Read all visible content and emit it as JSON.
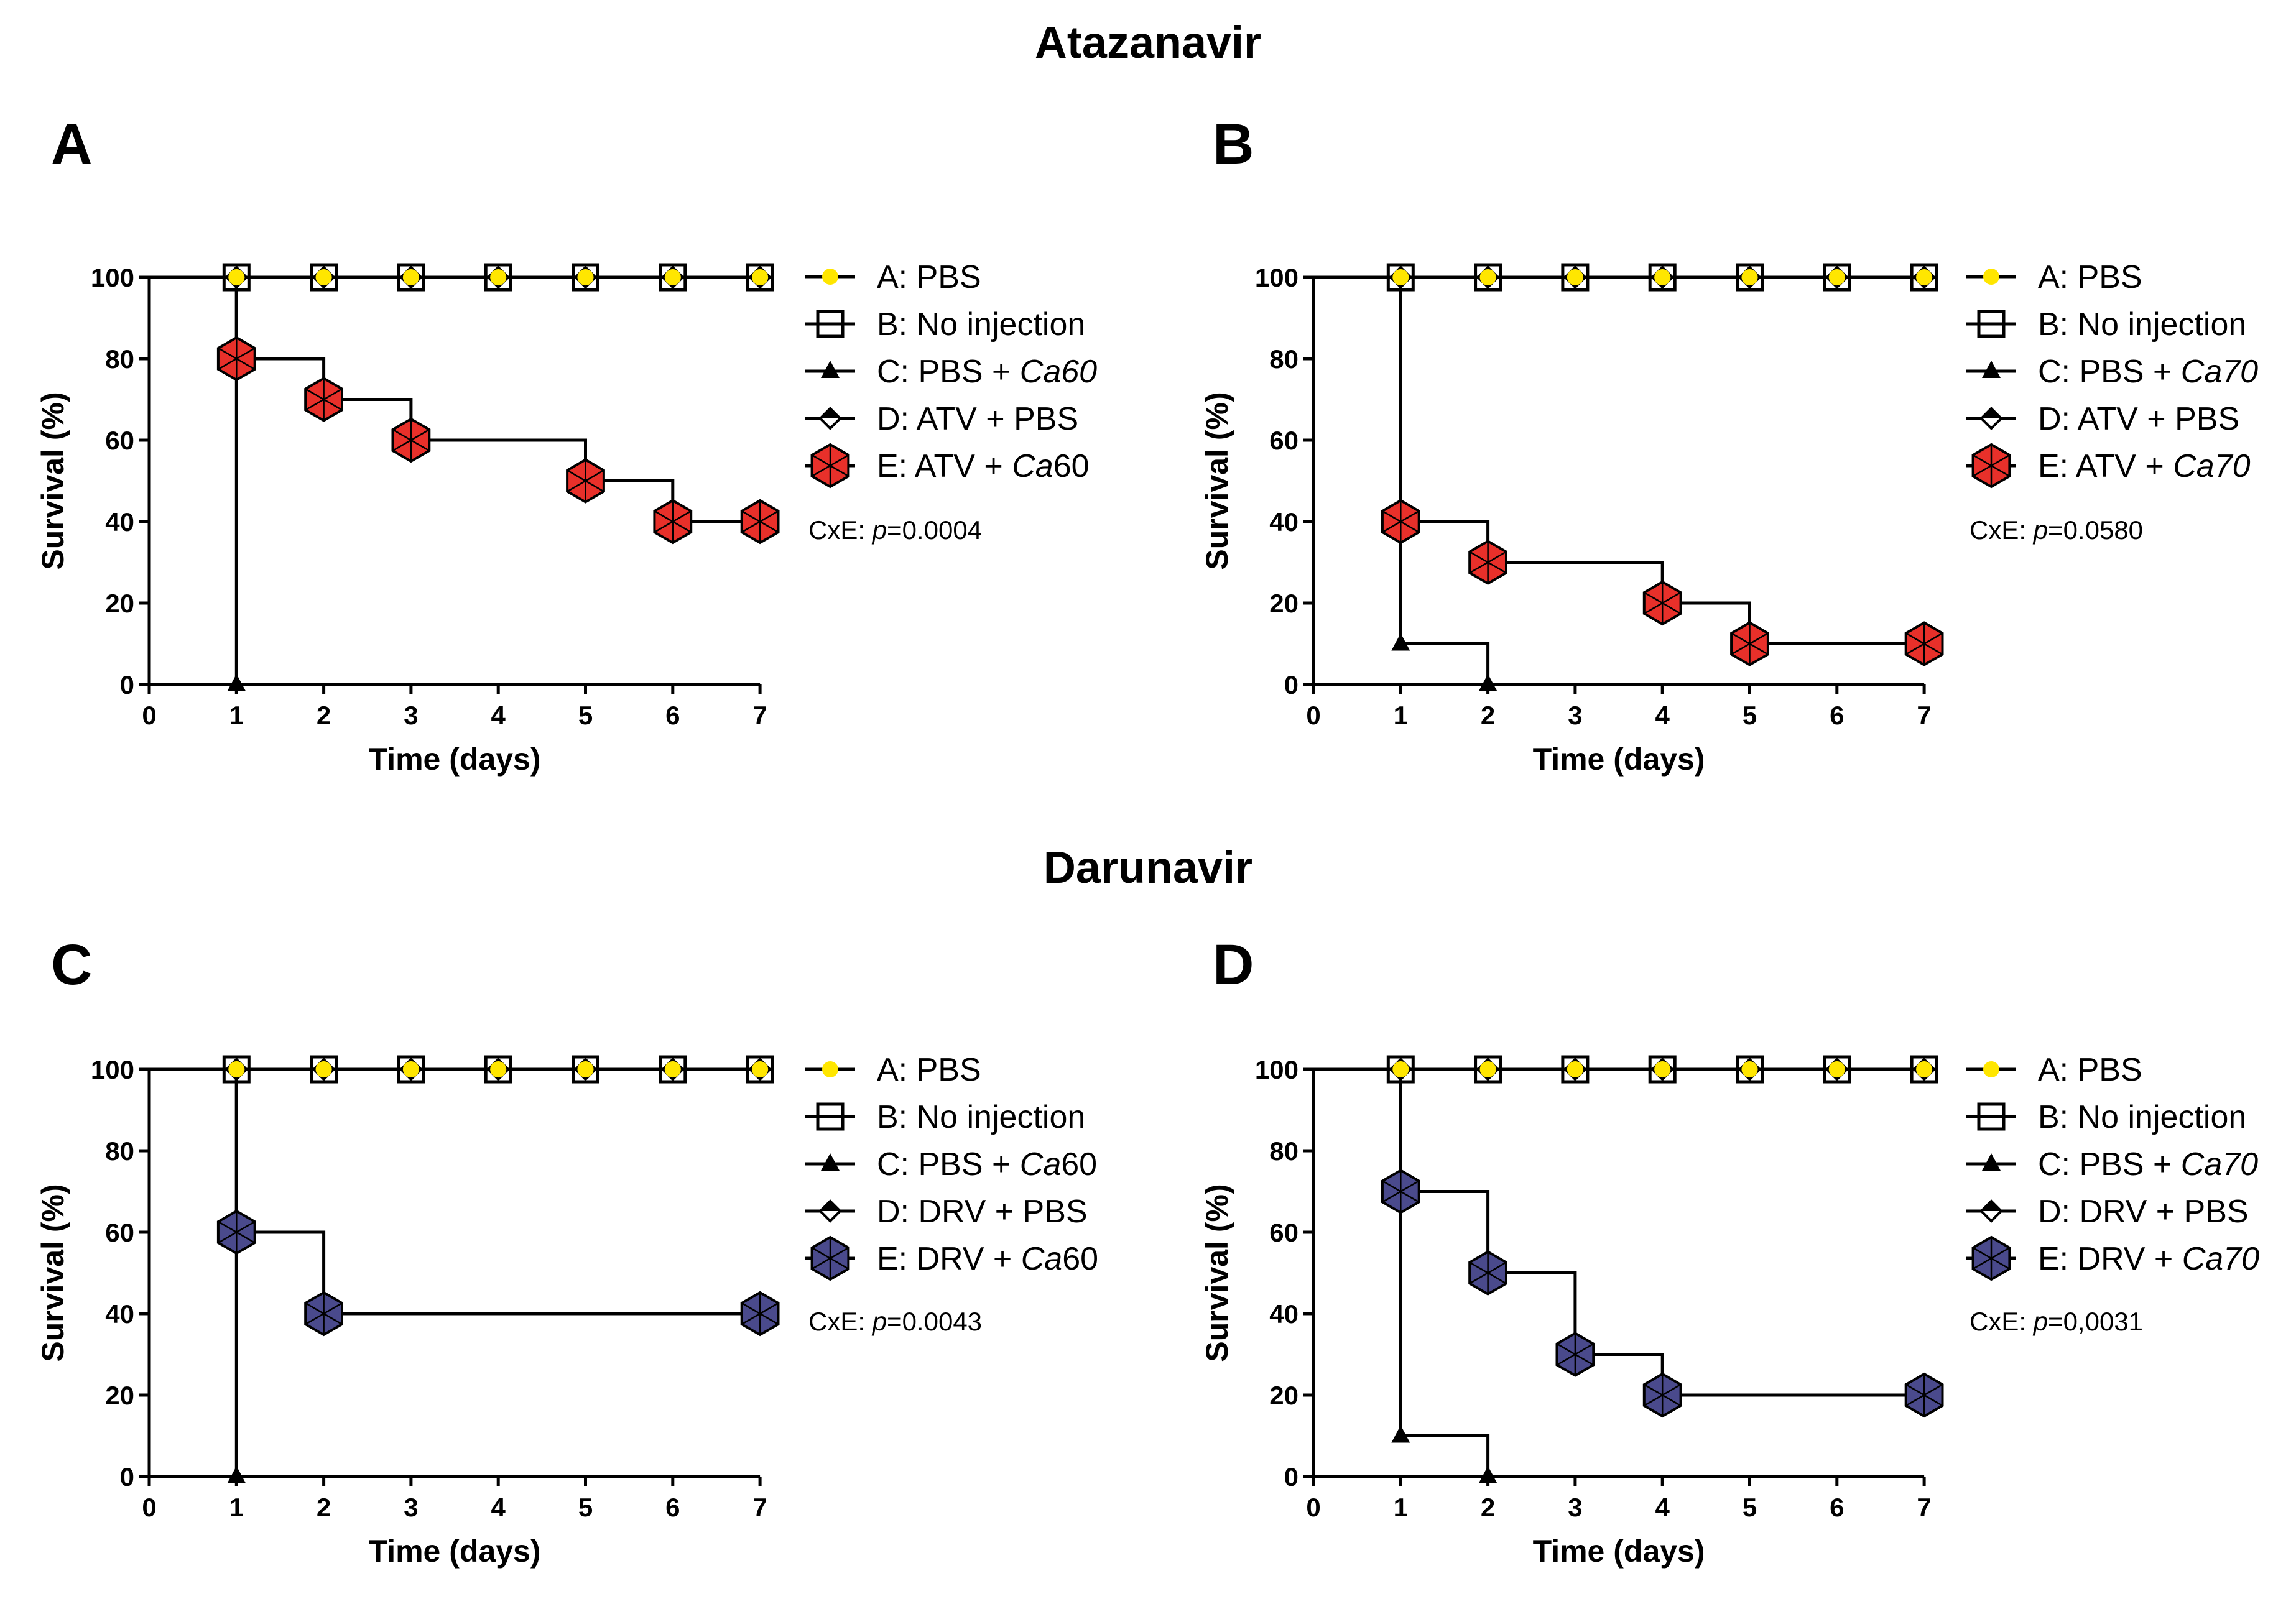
{
  "sections": [
    {
      "title": "Atazanavir"
    },
    {
      "title": "Darunavir"
    }
  ],
  "colors": {
    "yellow_marker": "#ffe600",
    "red_marker": "#e8302a",
    "blue_marker": "#4a4a8c",
    "line": "#000000"
  },
  "chart_data": [
    {
      "panel": "A",
      "type": "line",
      "subtype": "step",
      "xlabel": "Time (days)",
      "ylabel": "Survival (%)",
      "xlim": [
        0,
        7
      ],
      "ylim": [
        0,
        100
      ],
      "x_ticks": [
        "0",
        "1",
        "2",
        "3",
        "4",
        "5",
        "6",
        "7"
      ],
      "y_ticks": [
        "0",
        "20",
        "40",
        "60",
        "80",
        "100"
      ],
      "series": [
        {
          "name": "A: PBS",
          "label_pre": "A: PBS",
          "label_it": "",
          "label_post": "",
          "marker": "yellow-circle",
          "x": [
            1,
            2,
            3,
            4,
            5,
            6,
            7
          ],
          "values": [
            100,
            100,
            100,
            100,
            100,
            100,
            100
          ]
        },
        {
          "name": "B: No injection",
          "label_pre": "B: No injection",
          "label_it": "",
          "label_post": "",
          "marker": "open-square",
          "x": [
            1,
            2,
            3,
            4,
            5,
            6,
            7
          ],
          "values": [
            100,
            100,
            100,
            100,
            100,
            100,
            100
          ]
        },
        {
          "name": "C: PBS + Ca60",
          "label_pre": "C: PBS + ",
          "label_it": "Ca60",
          "label_post": "",
          "marker": "triangle",
          "x": [
            1
          ],
          "values": [
            0
          ]
        },
        {
          "name": "D: ATV + PBS",
          "label_pre": "D: ATV + PBS",
          "label_it": "",
          "label_post": "",
          "marker": "diamond",
          "x": [
            1,
            2,
            3,
            4,
            5,
            6,
            7
          ],
          "values": [
            100,
            100,
            100,
            100,
            100,
            100,
            100
          ]
        },
        {
          "name": "E: ATV + Ca60",
          "label_pre": "E: ATV + ",
          "label_it": "Ca",
          "label_post": "60",
          "marker": "red-hexagon",
          "x": [
            1,
            2,
            3,
            5,
            6,
            7
          ],
          "values": [
            80,
            70,
            60,
            50,
            40,
            40
          ]
        }
      ],
      "annotation": {
        "pre": "CxE: ",
        "it": "p",
        "post": "=0.0004"
      }
    },
    {
      "panel": "B",
      "type": "line",
      "subtype": "step",
      "xlabel": "Time (days)",
      "ylabel": "Survival (%)",
      "xlim": [
        0,
        7
      ],
      "ylim": [
        0,
        100
      ],
      "x_ticks": [
        "0",
        "1",
        "2",
        "3",
        "4",
        "5",
        "6",
        "7"
      ],
      "y_ticks": [
        "0",
        "20",
        "40",
        "60",
        "80",
        "100"
      ],
      "series": [
        {
          "name": "A: PBS",
          "label_pre": "A: PBS",
          "label_it": "",
          "label_post": "",
          "marker": "yellow-circle",
          "x": [
            1,
            2,
            3,
            4,
            5,
            6,
            7
          ],
          "values": [
            100,
            100,
            100,
            100,
            100,
            100,
            100
          ]
        },
        {
          "name": "B: No injection",
          "label_pre": "B: No injection",
          "label_it": "",
          "label_post": "",
          "marker": "open-square",
          "x": [
            1,
            2,
            3,
            4,
            5,
            6,
            7
          ],
          "values": [
            100,
            100,
            100,
            100,
            100,
            100,
            100
          ]
        },
        {
          "name": "C: PBS + Ca70",
          "label_pre": "C: PBS + ",
          "label_it": "Ca70",
          "label_post": "",
          "marker": "triangle",
          "x": [
            1,
            2
          ],
          "values": [
            10,
            0
          ]
        },
        {
          "name": "D: ATV + PBS",
          "label_pre": "D: ATV + PBS",
          "label_it": "",
          "label_post": "",
          "marker": "diamond",
          "x": [
            1,
            2,
            3,
            4,
            5,
            6,
            7
          ],
          "values": [
            100,
            100,
            100,
            100,
            100,
            100,
            100
          ]
        },
        {
          "name": "E: ATV + Ca70",
          "label_pre": "E: ATV + ",
          "label_it": "Ca70",
          "label_post": "",
          "marker": "red-hexagon",
          "x": [
            1,
            2,
            4,
            5,
            7
          ],
          "values": [
            40,
            30,
            20,
            10,
            10
          ]
        }
      ],
      "annotation": {
        "pre": "CxE: ",
        "it": "p",
        "post": "=0.0580"
      }
    },
    {
      "panel": "C",
      "type": "line",
      "subtype": "step",
      "xlabel": "Time (days)",
      "ylabel": "Survival (%)",
      "xlim": [
        0,
        7
      ],
      "ylim": [
        0,
        100
      ],
      "x_ticks": [
        "0",
        "1",
        "2",
        "3",
        "4",
        "5",
        "6",
        "7"
      ],
      "y_ticks": [
        "0",
        "20",
        "40",
        "60",
        "80",
        "100"
      ],
      "series": [
        {
          "name": "A: PBS",
          "label_pre": "A: PBS",
          "label_it": "",
          "label_post": "",
          "marker": "yellow-circle",
          "x": [
            1,
            2,
            3,
            4,
            5,
            6,
            7
          ],
          "values": [
            100,
            100,
            100,
            100,
            100,
            100,
            100
          ]
        },
        {
          "name": "B: No injection",
          "label_pre": "B: No injection",
          "label_it": "",
          "label_post": "",
          "marker": "open-square",
          "x": [
            1,
            2,
            3,
            4,
            5,
            6,
            7
          ],
          "values": [
            100,
            100,
            100,
            100,
            100,
            100,
            100
          ]
        },
        {
          "name": "C: PBS + Ca60",
          "label_pre": "C: PBS + ",
          "label_it": "Ca",
          "label_post": "60",
          "marker": "triangle",
          "x": [
            1
          ],
          "values": [
            0
          ]
        },
        {
          "name": "D: DRV + PBS",
          "label_pre": "D: DRV + PBS",
          "label_it": "",
          "label_post": "",
          "marker": "diamond",
          "x": [
            1,
            2,
            3,
            4,
            5,
            6,
            7
          ],
          "values": [
            100,
            100,
            100,
            100,
            100,
            100,
            100
          ]
        },
        {
          "name": "E: DRV + Ca60",
          "label_pre": "E: DRV + ",
          "label_it": "Ca",
          "label_post": "60",
          "marker": "blue-hexagon",
          "x": [
            1,
            2,
            7
          ],
          "values": [
            60,
            40,
            40
          ]
        }
      ],
      "annotation": {
        "pre": "CxE: ",
        "it": "p",
        "post": "=0.0043"
      }
    },
    {
      "panel": "D",
      "type": "line",
      "subtype": "step",
      "xlabel": "Time (days)",
      "ylabel": "Survival (%)",
      "xlim": [
        0,
        7
      ],
      "ylim": [
        0,
        100
      ],
      "x_ticks": [
        "0",
        "1",
        "2",
        "3",
        "4",
        "5",
        "6",
        "7"
      ],
      "y_ticks": [
        "0",
        "20",
        "40",
        "60",
        "80",
        "100"
      ],
      "series": [
        {
          "name": "A: PBS",
          "label_pre": "A: PBS",
          "label_it": "",
          "label_post": "",
          "marker": "yellow-circle",
          "x": [
            1,
            2,
            3,
            4,
            5,
            6,
            7
          ],
          "values": [
            100,
            100,
            100,
            100,
            100,
            100,
            100
          ]
        },
        {
          "name": "B: No injection",
          "label_pre": "B: No injection",
          "label_it": "",
          "label_post": "",
          "marker": "open-square",
          "x": [
            1,
            2,
            3,
            4,
            5,
            6,
            7
          ],
          "values": [
            100,
            100,
            100,
            100,
            100,
            100,
            100
          ]
        },
        {
          "name": "C: PBS + Ca70",
          "label_pre": "C: PBS + ",
          "label_it": "Ca70",
          "label_post": "",
          "marker": "triangle",
          "x": [
            1,
            2
          ],
          "values": [
            10,
            0
          ]
        },
        {
          "name": "D: DRV + PBS",
          "label_pre": "D: DRV + PBS",
          "label_it": "",
          "label_post": "",
          "marker": "diamond",
          "x": [
            1,
            2,
            3,
            4,
            5,
            6,
            7
          ],
          "values": [
            100,
            100,
            100,
            100,
            100,
            100,
            100
          ]
        },
        {
          "name": "E: DRV + Ca70",
          "label_pre": "E: DRV + ",
          "label_it": "Ca70",
          "label_post": "",
          "marker": "blue-hexagon",
          "x": [
            1,
            2,
            3,
            4,
            7
          ],
          "values": [
            70,
            50,
            30,
            20,
            20
          ]
        }
      ],
      "annotation": {
        "pre": "CxE: ",
        "it": "p",
        "post": "=0,0031"
      }
    }
  ]
}
